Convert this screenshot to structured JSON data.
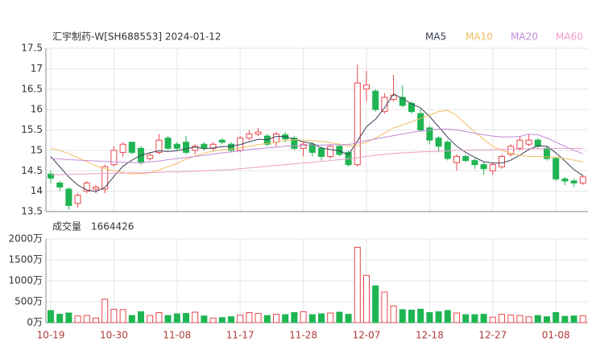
{
  "chart_data": [
    {
      "type": "candlestick",
      "title": "汇宇制药-W[SH688553] 2024-01-12",
      "up_color": "#e8474b",
      "down_color": "#1fb552",
      "open": [
        14.42,
        14.2,
        14.05,
        13.7,
        14.0,
        14.05,
        14.05,
        14.65,
        14.95,
        15.2,
        15.05,
        14.8,
        14.95,
        15.3,
        15.15,
        15.2,
        15.0,
        15.15,
        15.05,
        15.25,
        15.15,
        15.0,
        15.3,
        15.4,
        15.35,
        15.2,
        15.38,
        15.3,
        15.05,
        15.15,
        15.05,
        14.85,
        15.1,
        14.95,
        14.65,
        16.5,
        16.45,
        15.95,
        16.25,
        16.3,
        16.15,
        15.9,
        15.55,
        15.3,
        15.2,
        14.7,
        14.85,
        14.75,
        14.65,
        14.5,
        14.6,
        14.9,
        15.05,
        15.15,
        15.25,
        15.05,
        14.8,
        14.3,
        14.25,
        14.2
      ],
      "high": [
        14.5,
        14.25,
        14.1,
        13.95,
        14.25,
        14.15,
        14.65,
        15.1,
        15.2,
        15.2,
        15.1,
        14.95,
        15.4,
        15.35,
        15.2,
        15.35,
        15.15,
        15.2,
        15.2,
        15.3,
        15.2,
        15.35,
        15.5,
        15.55,
        15.4,
        15.45,
        15.45,
        15.35,
        15.2,
        15.2,
        15.1,
        15.15,
        15.15,
        15.0,
        17.1,
        16.95,
        16.5,
        16.4,
        16.85,
        16.6,
        16.2,
        16.0,
        15.6,
        15.35,
        15.25,
        14.9,
        14.9,
        14.8,
        14.7,
        14.7,
        14.9,
        15.15,
        15.35,
        15.4,
        15.3,
        15.1,
        14.85,
        14.35,
        14.3,
        14.4
      ],
      "low": [
        14.2,
        14.0,
        13.55,
        13.6,
        13.95,
        13.95,
        13.95,
        14.6,
        14.85,
        14.9,
        14.65,
        14.75,
        14.9,
        15.0,
        15.0,
        14.9,
        14.9,
        15.0,
        15.0,
        15.15,
        14.95,
        14.95,
        15.25,
        15.35,
        15.1,
        15.1,
        15.2,
        15.0,
        14.85,
        14.85,
        14.75,
        14.8,
        14.85,
        14.6,
        14.6,
        16.2,
        15.95,
        15.9,
        16.2,
        16.05,
        15.9,
        15.45,
        15.15,
        14.95,
        14.75,
        14.5,
        14.7,
        14.55,
        14.4,
        14.4,
        14.55,
        14.85,
        15.0,
        15.1,
        15.05,
        14.75,
        14.25,
        14.15,
        14.1,
        14.15
      ],
      "close": [
        14.32,
        14.1,
        13.65,
        13.9,
        14.2,
        14.1,
        14.6,
        15.0,
        15.15,
        14.95,
        14.7,
        14.88,
        15.25,
        15.05,
        15.05,
        14.95,
        15.1,
        15.05,
        15.15,
        15.2,
        15.0,
        15.3,
        15.4,
        15.45,
        15.15,
        15.4,
        15.28,
        15.05,
        15.15,
        14.95,
        14.85,
        15.1,
        14.9,
        14.65,
        16.65,
        16.6,
        16.0,
        16.3,
        16.35,
        16.1,
        15.95,
        15.5,
        15.25,
        15.1,
        14.8,
        14.85,
        14.75,
        14.65,
        14.55,
        14.65,
        14.85,
        15.1,
        15.25,
        15.25,
        15.1,
        14.8,
        14.3,
        14.25,
        14.2,
        14.35
      ],
      "series": [
        {
          "name": "MA5",
          "color": "#3b3f58",
          "values": [
            14.85,
            14.6,
            14.35,
            14.15,
            14.03,
            13.99,
            14.09,
            14.36,
            14.61,
            14.76,
            14.88,
            14.94,
            14.99,
            14.97,
            14.99,
            15.04,
            15.08,
            15.04,
            15.06,
            15.09,
            15.1,
            15.14,
            15.21,
            15.27,
            15.26,
            15.34,
            15.34,
            15.27,
            15.21,
            15.17,
            15.06,
            15.02,
            14.99,
            14.89,
            15.23,
            15.58,
            15.76,
            16.04,
            16.38,
            16.27,
            16.14,
            16.04,
            15.83,
            15.58,
            15.32,
            15.1,
            14.95,
            14.83,
            14.72,
            14.69,
            14.69,
            14.76,
            14.88,
            15.02,
            15.11,
            15.1,
            14.94,
            14.74,
            14.53,
            14.38
          ]
        },
        {
          "name": "MA10",
          "color": "#f3bd62",
          "values": [
            15.05,
            15.0,
            14.92,
            14.82,
            14.72,
            14.62,
            14.55,
            14.5,
            14.46,
            14.42,
            14.43,
            14.45,
            14.52,
            14.6,
            14.68,
            14.78,
            14.86,
            14.93,
            14.98,
            15.01,
            15.03,
            15.06,
            15.1,
            15.14,
            15.17,
            15.2,
            15.24,
            15.26,
            15.25,
            15.24,
            15.22,
            15.19,
            15.15,
            15.1,
            15.12,
            15.2,
            15.3,
            15.42,
            15.55,
            15.62,
            15.7,
            15.78,
            15.86,
            15.95,
            15.98,
            15.85,
            15.65,
            15.45,
            15.27,
            15.1,
            15.0,
            14.93,
            14.88,
            14.85,
            14.85,
            14.84,
            14.83,
            14.8,
            14.76,
            14.72
          ]
        },
        {
          "name": "MA20",
          "color": "#c08ad8",
          "values": [
            14.8,
            14.79,
            14.77,
            14.76,
            14.75,
            14.74,
            14.73,
            14.72,
            14.71,
            14.7,
            14.7,
            14.72,
            14.74,
            14.77,
            14.8,
            14.82,
            14.85,
            14.88,
            14.91,
            14.94,
            14.96,
            14.99,
            15.02,
            15.04,
            15.06,
            15.08,
            15.1,
            15.11,
            15.12,
            15.13,
            15.13,
            15.14,
            15.14,
            15.14,
            15.18,
            15.24,
            15.28,
            15.32,
            15.36,
            15.4,
            15.44,
            15.47,
            15.5,
            15.52,
            15.52,
            15.5,
            15.46,
            15.42,
            15.38,
            15.35,
            15.33,
            15.33,
            15.34,
            15.4,
            15.38,
            15.3,
            15.2,
            15.1,
            15.0,
            14.92
          ]
        },
        {
          "name": "MA60",
          "color": "#ee9cc8",
          "values": [
            14.4,
            14.41,
            14.41,
            14.42,
            14.42,
            14.43,
            14.43,
            14.44,
            14.44,
            14.45,
            14.45,
            14.46,
            14.46,
            14.47,
            14.47,
            14.48,
            14.49,
            14.5,
            14.51,
            14.52,
            14.53,
            14.55,
            14.57,
            14.59,
            14.61,
            14.63,
            14.65,
            14.67,
            14.69,
            14.71,
            14.73,
            14.75,
            14.77,
            14.79,
            14.82,
            14.85,
            14.88,
            14.9,
            14.92,
            14.94,
            14.95,
            14.96,
            14.97,
            14.98,
            14.99,
            15.0,
            15.0,
            15.01,
            15.01,
            15.02,
            15.02,
            15.03,
            15.03,
            15.04,
            15.04,
            15.04,
            15.05,
            15.05,
            15.05,
            15.05
          ]
        }
      ],
      "ylim": [
        13.5,
        17.5
      ],
      "yticks": [
        13.5,
        14,
        14.5,
        15,
        15.5,
        16,
        16.5,
        17,
        17.5
      ],
      "grid": true
    },
    {
      "type": "bar",
      "title": "成交量",
      "latest": 1664426,
      "categories": [
        "10-19",
        null,
        null,
        null,
        null,
        null,
        null,
        "10-30",
        null,
        null,
        null,
        null,
        null,
        null,
        "11-08",
        null,
        null,
        null,
        null,
        null,
        null,
        "11-17",
        null,
        null,
        null,
        null,
        null,
        null,
        "11-28",
        null,
        null,
        null,
        null,
        null,
        null,
        "12-07",
        null,
        null,
        null,
        null,
        null,
        null,
        "12-18",
        null,
        null,
        null,
        null,
        null,
        null,
        "12-27",
        null,
        null,
        null,
        null,
        null,
        null,
        "01-08",
        null,
        null,
        null
      ],
      "values": [
        290,
        200,
        230,
        160,
        170,
        110,
        560,
        320,
        310,
        170,
        260,
        170,
        240,
        170,
        210,
        220,
        250,
        160,
        110,
        120,
        140,
        180,
        240,
        220,
        170,
        200,
        190,
        240,
        260,
        190,
        210,
        230,
        250,
        200,
        1800,
        1130,
        880,
        730,
        400,
        310,
        300,
        320,
        240,
        260,
        290,
        230,
        190,
        190,
        200,
        130,
        200,
        180,
        170,
        140,
        170,
        140,
        240,
        150,
        160,
        166.4426
      ],
      "ylim": [
        0,
        2000
      ],
      "yticks": [
        {
          "value": 0,
          "label": "0万"
        },
        {
          "value": 500,
          "label": "500万"
        },
        {
          "value": 1000,
          "label": "1000万"
        },
        {
          "value": 1500,
          "label": "1500万"
        },
        {
          "value": 2000,
          "label": "2000万"
        }
      ],
      "grid": true
    }
  ]
}
